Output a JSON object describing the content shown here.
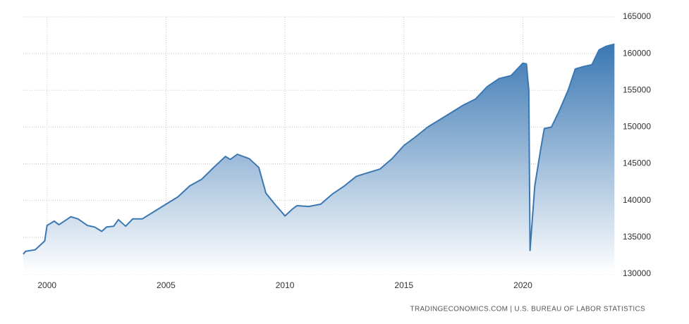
{
  "chart_data": {
    "type": "area",
    "source": "TRADINGECONOMICS.COM | U.S. BUREAU OF LABOR STATISTICS",
    "color": "#3b78b3",
    "grid": true,
    "x": [
      1999.0,
      1999.1,
      1999.5,
      1999.9,
      2000.0,
      2000.3,
      2000.5,
      2001.0,
      2001.3,
      2001.7,
      2002.0,
      2002.3,
      2002.5,
      2002.8,
      2003.0,
      2003.3,
      2003.6,
      2004.0,
      2004.5,
      2005.0,
      2005.5,
      2006.0,
      2006.5,
      2007.0,
      2007.5,
      2007.7,
      2008.0,
      2008.5,
      2008.9,
      2009.2,
      2009.6,
      2009.9,
      2010.0,
      2010.3,
      2010.5,
      2011.0,
      2011.5,
      2012.0,
      2012.5,
      2013.0,
      2013.5,
      2014.0,
      2014.5,
      2015.0,
      2015.5,
      2016.0,
      2016.5,
      2017.0,
      2017.5,
      2018.0,
      2018.5,
      2019.0,
      2019.5,
      2020.0,
      2020.15,
      2020.25,
      2020.3,
      2020.5,
      2020.75,
      2020.9,
      2021.2,
      2021.5,
      2021.9,
      2022.2,
      2022.5,
      2022.9,
      2023.2,
      2023.5,
      2023.85
    ],
    "values": [
      132700,
      133100,
      133300,
      134500,
      136600,
      137200,
      136700,
      137800,
      137500,
      136600,
      136400,
      135800,
      136400,
      136500,
      137400,
      136500,
      137500,
      137500,
      138500,
      139500,
      140500,
      142000,
      142900,
      144500,
      146000,
      145600,
      146300,
      145700,
      144500,
      141000,
      139400,
      138300,
      137900,
      138800,
      139300,
      139200,
      139500,
      140900,
      142000,
      143300,
      143800,
      144300,
      145700,
      147500,
      148700,
      150000,
      151000,
      152000,
      153000,
      153800,
      155500,
      156600,
      157000,
      158700,
      158600,
      155000,
      133200,
      142000,
      147000,
      149800,
      150000,
      152000,
      155000,
      157900,
      158200,
      158500,
      160500,
      161000,
      161300
    ],
    "xlim": [
      1999,
      2023.9
    ],
    "xticks": [
      2000,
      2005,
      2010,
      2015,
      2020
    ],
    "ylim": [
      130000,
      165000
    ],
    "yticks": [
      130000,
      135000,
      140000,
      145000,
      150000,
      155000,
      160000,
      165000
    ]
  }
}
